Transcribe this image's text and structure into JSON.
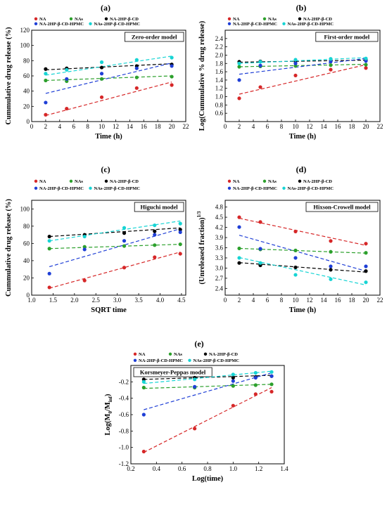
{
  "panels": [
    {
      "label": "(a)",
      "model_name": "Zero-order model",
      "xlabel": "Time (h)",
      "ylabel": "Cummulative drug release (%)",
      "xlim": [
        0,
        22
      ],
      "ylim": [
        0,
        120
      ],
      "xticks": [
        0,
        2,
        4,
        6,
        8,
        10,
        12,
        14,
        16,
        18,
        20,
        22
      ],
      "yticks": [
        0,
        20,
        40,
        60,
        80,
        100,
        120
      ],
      "xtick_labels": [
        "0",
        "2",
        "4",
        "6",
        "8",
        "10",
        "12",
        "14",
        "16",
        "18",
        "20",
        "22"
      ],
      "ytick_labels": [
        "0",
        "20",
        "40",
        "60",
        "80",
        "100",
        "120"
      ],
      "x": [
        2,
        5,
        10,
        15,
        20
      ],
      "series": [
        {
          "name": "NA",
          "color": "#d62728",
          "values": [
            9,
            17,
            32,
            44,
            48
          ]
        },
        {
          "name": "NAs",
          "color": "#2ca02c",
          "values": [
            54,
            53,
            56,
            58,
            59
          ]
        },
        {
          "name": "NA-2HP-β-CD",
          "color": "#000000",
          "values": [
            69,
            70,
            71,
            73,
            75
          ]
        },
        {
          "name": "NA-2HP-β-CD-HPMC",
          "color": "#1f3fd6",
          "values": [
            25,
            56,
            63,
            70,
            73
          ]
        },
        {
          "name": "NAs-2HP-β-CD-HPMC",
          "color": "#17d4d4",
          "values": [
            63,
            68,
            78,
            81,
            84
          ]
        }
      ],
      "fits": [
        [
          8,
          52
        ],
        [
          54,
          60
        ],
        [
          68,
          76
        ],
        [
          37,
          77
        ],
        [
          61,
          86
        ]
      ]
    },
    {
      "label": "(b)",
      "model_name": "First-order model",
      "xlabel": "Time (h)",
      "ylabel": "Log(Cummulative % drug release)",
      "xlim": [
        0,
        22
      ],
      "ylim": [
        0.4,
        2.6
      ],
      "xticks": [
        0,
        2,
        4,
        6,
        8,
        10,
        12,
        14,
        16,
        18,
        20,
        22
      ],
      "yticks": [
        0.6,
        0.8,
        1.0,
        1.2,
        1.4,
        1.6,
        1.8,
        2.0,
        2.2,
        2.4
      ],
      "xtick_labels": [
        "0",
        "2",
        "4",
        "6",
        "8",
        "10",
        "12",
        "14",
        "16",
        "18",
        "20",
        "22"
      ],
      "ytick_labels": [
        "0.6",
        "0.8",
        "1.0",
        "1.2",
        "1.4",
        "1.6",
        "1.8",
        "2.0",
        "2.2",
        "2.4"
      ],
      "x": [
        2,
        5,
        10,
        15,
        20
      ],
      "series": [
        {
          "name": "NA",
          "color": "#d62728",
          "values": [
            0.96,
            1.23,
            1.51,
            1.65,
            1.69
          ]
        },
        {
          "name": "NAs",
          "color": "#2ca02c",
          "values": [
            1.72,
            1.73,
            1.74,
            1.76,
            1.77
          ]
        },
        {
          "name": "NA-2HP-β-CD",
          "color": "#000000",
          "values": [
            1.84,
            1.85,
            1.85,
            1.86,
            1.88
          ]
        },
        {
          "name": "NA-2HP-β-CD-HPMC",
          "color": "#1f3fd6",
          "values": [
            1.4,
            1.75,
            1.8,
            1.85,
            1.86
          ]
        },
        {
          "name": "NAs-2HP-β-CD-HPMC",
          "color": "#17d4d4",
          "values": [
            1.8,
            1.84,
            1.89,
            1.91,
            1.92
          ]
        }
      ],
      "fits": [
        [
          1.06,
          1.77
        ],
        [
          1.72,
          1.78
        ],
        [
          1.83,
          1.88
        ],
        [
          1.54,
          1.92
        ],
        [
          1.8,
          1.94
        ]
      ]
    },
    {
      "label": "(c)",
      "model_name": "Higuchi model",
      "xlabel": "SQRT time",
      "ylabel": "Cummulative drug release (%)",
      "xlim": [
        1.0,
        4.6
      ],
      "ylim": [
        0,
        110
      ],
      "xticks": [
        1.0,
        1.5,
        2.0,
        2.5,
        3.0,
        3.5,
        4.0,
        4.5
      ],
      "yticks": [
        0,
        20,
        40,
        60,
        80,
        100
      ],
      "xtick_labels": [
        "1.0",
        "1.5",
        "2.0",
        "2.5",
        "3.0",
        "3.5",
        "4.0",
        "4.5"
      ],
      "ytick_labels": [
        "0",
        "20",
        "40",
        "60",
        "80",
        "100"
      ],
      "x": [
        1.414,
        2.236,
        3.162,
        3.873,
        4.472
      ],
      "series": [
        {
          "name": "NA",
          "color": "#d62728",
          "values": [
            9,
            17,
            32,
            44,
            48
          ]
        },
        {
          "name": "NAs",
          "color": "#2ca02c",
          "values": [
            54,
            56,
            57,
            58,
            59
          ]
        },
        {
          "name": "NA-2HP-β-CD",
          "color": "#000000",
          "values": [
            68,
            70,
            72,
            74,
            76
          ]
        },
        {
          "name": "NA-2HP-β-CD-HPMC",
          "color": "#1f3fd6",
          "values": [
            25,
            53,
            63,
            70,
            73
          ]
        },
        {
          "name": "NAs-2HP-β-CD-HPMC",
          "color": "#17d4d4",
          "values": [
            63,
            68,
            78,
            81,
            83
          ]
        }
      ],
      "fits": [
        [
          8,
          50
        ],
        [
          54,
          59
        ],
        [
          68,
          78
        ],
        [
          33,
          77
        ],
        [
          63,
          86
        ]
      ]
    },
    {
      "label": "(d)",
      "model_name": "Hixson-Crowell model",
      "xlabel": "Time (h)",
      "ylabel": "(Unreleased fraction)",
      "ylabel_superscript": "1/3",
      "xlim": [
        0,
        22
      ],
      "ylim": [
        2.2,
        5.0
      ],
      "xticks": [
        0,
        2,
        4,
        6,
        8,
        10,
        12,
        14,
        16,
        18,
        20,
        22
      ],
      "yticks": [
        2.4,
        2.7,
        3.0,
        3.3,
        3.6,
        3.9,
        4.2,
        4.5,
        4.8
      ],
      "xtick_labels": [
        "0",
        "2",
        "4",
        "6",
        "8",
        "10",
        "12",
        "14",
        "16",
        "18",
        "20",
        "22"
      ],
      "ytick_labels": [
        "2.4",
        "2.7",
        "3.0",
        "3.3",
        "3.6",
        "3.9",
        "4.2",
        "4.5",
        "4.8"
      ],
      "x": [
        2,
        5,
        10,
        15,
        20
      ],
      "series": [
        {
          "name": "NA",
          "color": "#d62728",
          "values": [
            4.5,
            4.36,
            4.08,
            3.8,
            3.72
          ]
        },
        {
          "name": "NAs",
          "color": "#2ca02c",
          "values": [
            3.58,
            3.55,
            3.52,
            3.48,
            3.45
          ]
        },
        {
          "name": "NA-2HP-β-CD",
          "color": "#000000",
          "values": [
            3.15,
            3.08,
            3.02,
            2.95,
            2.91
          ]
        },
        {
          "name": "NA-2HP-β-CD-HPMC",
          "color": "#1f3fd6",
          "values": [
            4.21,
            3.57,
            3.3,
            3.05,
            3.05
          ]
        },
        {
          "name": "NAs-2HP-β-CD-HPMC",
          "color": "#17d4d4",
          "values": [
            3.3,
            3.15,
            2.8,
            2.67,
            2.58
          ]
        }
      ],
      "fits": [
        [
          4.47,
          3.67
        ],
        [
          3.58,
          3.44
        ],
        [
          3.16,
          2.88
        ],
        [
          3.97,
          2.91
        ],
        [
          3.31,
          2.5
        ]
      ]
    },
    {
      "label": "(e)",
      "model_name": "Korsmeyer-Peppas model",
      "xlabel": "Log(time)",
      "ylabel": "Log(M",
      "ylabel_sub1": "0",
      "ylabel_mid": "/M",
      "ylabel_sub2": "inf",
      "ylabel_end": ")",
      "xlim": [
        0.2,
        1.4
      ],
      "ylim": [
        -1.2,
        0.0
      ],
      "xticks": [
        0.2,
        0.4,
        0.6,
        0.8,
        1.0,
        1.2,
        1.4
      ],
      "yticks": [
        -1.2,
        -1.0,
        -0.8,
        -0.6,
        -0.4,
        -0.2
      ],
      "xtick_labels": [
        "0.2",
        "0.4",
        "0.6",
        "0.8",
        "1.0",
        "1.2",
        "1.4"
      ],
      "ytick_labels": [
        "-1.2",
        "-1.0",
        "-0.8",
        "-0.6",
        "-0.4",
        "-0.2"
      ],
      "x": [
        0.301,
        0.699,
        1.0,
        1.176,
        1.301
      ],
      "series": [
        {
          "name": "NA",
          "color": "#d62728",
          "values": [
            -1.05,
            -0.77,
            -0.49,
            -0.35,
            -0.32
          ]
        },
        {
          "name": "NAs",
          "color": "#2ca02c",
          "values": [
            -0.27,
            -0.27,
            -0.25,
            -0.24,
            -0.23
          ]
        },
        {
          "name": "NA-2HP-β-CD",
          "color": "#000000",
          "values": [
            -0.17,
            -0.15,
            -0.15,
            -0.14,
            -0.13
          ]
        },
        {
          "name": "NA-2HP-β-CD-HPMC",
          "color": "#1f3fd6",
          "values": [
            -0.6,
            -0.26,
            -0.19,
            -0.15,
            -0.13
          ]
        },
        {
          "name": "NAs-2HP-β-CD-HPMC",
          "color": "#17d4d4",
          "values": [
            -0.2,
            -0.17,
            -0.11,
            -0.09,
            -0.08
          ]
        }
      ],
      "fits": [
        [
          -1.06,
          -0.27
        ],
        [
          -0.28,
          -0.23
        ],
        [
          -0.17,
          -0.12
        ],
        [
          -0.54,
          -0.09
        ],
        [
          -0.22,
          -0.07
        ]
      ]
    }
  ]
}
